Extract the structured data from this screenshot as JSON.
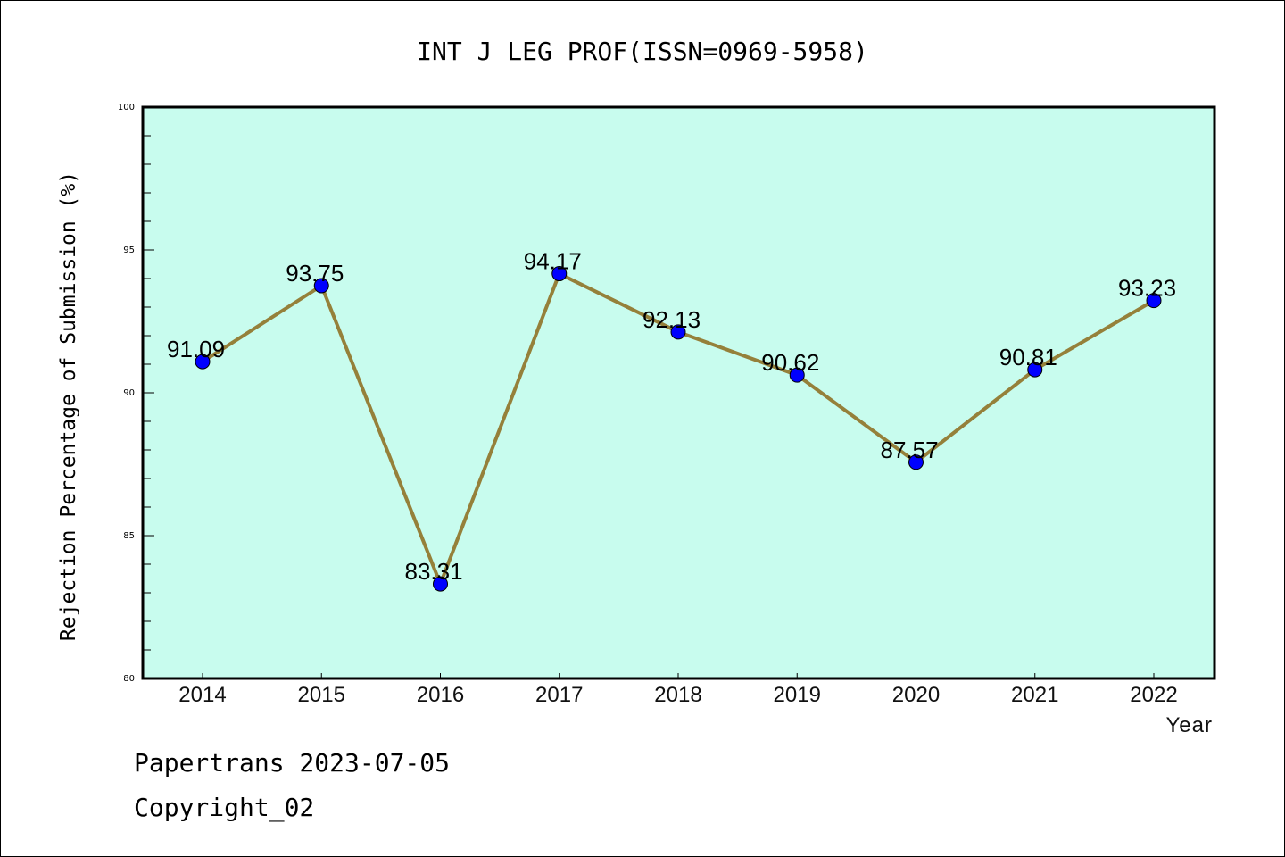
{
  "chart_data": {
    "type": "line",
    "title": "INT J LEG PROF(ISSN=0969-5958)",
    "xlabel": "Year",
    "ylabel": "Rejection Percentage of Submission (%)",
    "categories": [
      "2014",
      "2015",
      "2016",
      "2017",
      "2018",
      "2019",
      "2020",
      "2021",
      "2022"
    ],
    "series": [
      {
        "name": "Rejection Percentage",
        "values": [
          91.09,
          93.75,
          83.31,
          94.17,
          92.13,
          90.62,
          87.57,
          90.81,
          93.23
        ],
        "labels": [
          "91.09",
          "93.75",
          "83.31",
          "94.17",
          "92.13",
          "90.62",
          "87.57",
          "90.81",
          "93.23"
        ],
        "line_color": "#95803a",
        "marker_color": "#0000ff"
      }
    ],
    "ylim": [
      80,
      100
    ],
    "yticks_major": [
      80,
      85,
      90,
      95,
      100
    ],
    "ytick_labels": [
      "80",
      "85",
      "90",
      "95",
      "100"
    ],
    "yticks_minor_step": 1,
    "grid": false,
    "legend": "none",
    "plot_background": "#c8fcee"
  },
  "footer": {
    "line1": "Papertrans 2023-07-05",
    "line2": "Copyright_02"
  }
}
